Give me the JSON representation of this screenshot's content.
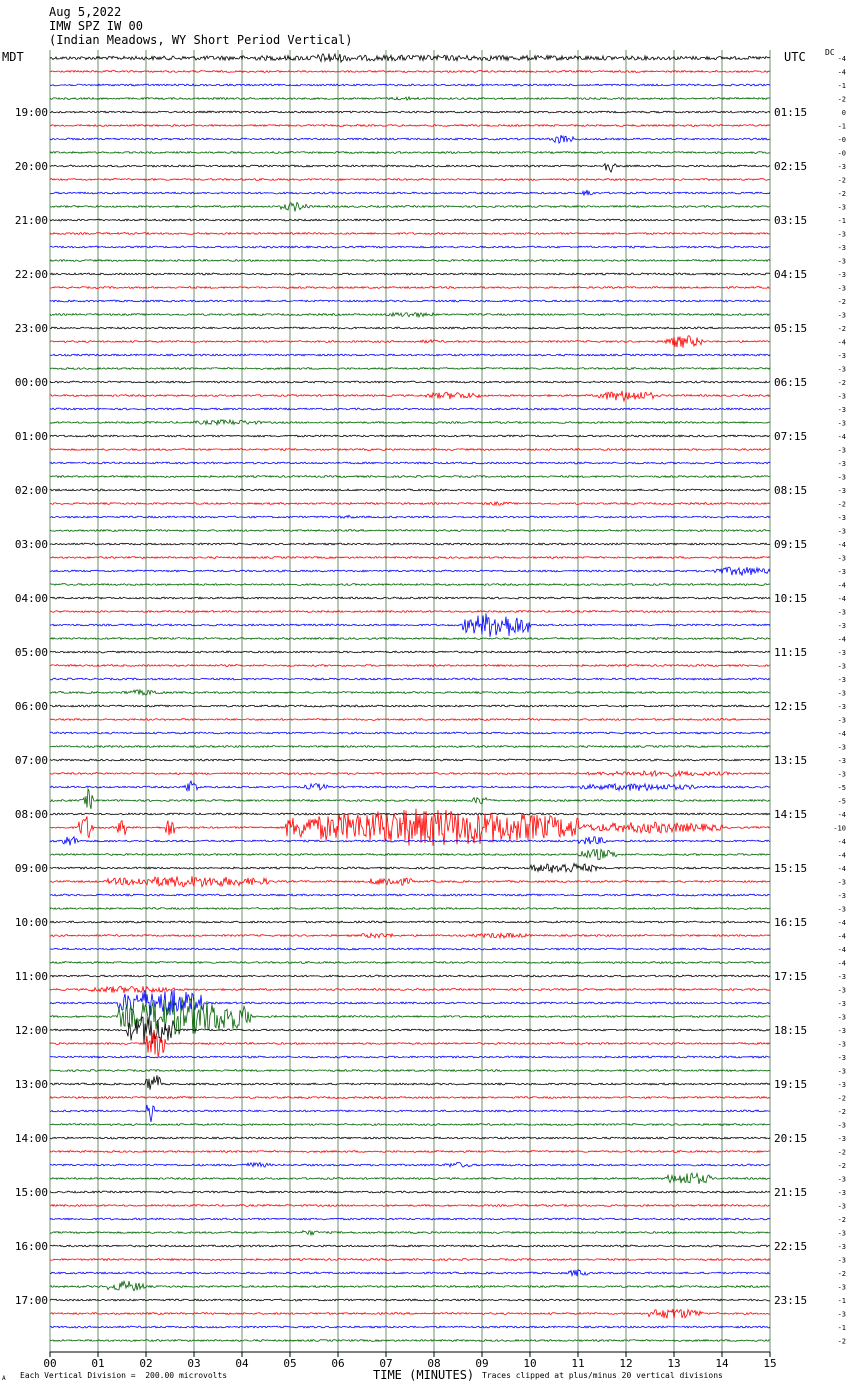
{
  "header": {
    "date": "Aug 5,2022",
    "station": "IMW SPZ IW 00",
    "location": "(Indian Meadows, WY Short Period Vertical)"
  },
  "left_tz": "MDT",
  "right_tz": "UTC",
  "dc_label": "DC",
  "footer": {
    "scale_note": "Each Vertical Division =  200.00 microvolts",
    "clip_note": "Traces clipped at plus/minus 20 vertical divisions",
    "corner_mark": "A"
  },
  "colors": {
    "trace_cycle": [
      "#000000",
      "#ff0000",
      "#0000ff",
      "#006400"
    ],
    "gridline": "#6e8f6e"
  },
  "chart_data": {
    "type": "helicorder",
    "title": "IMW SPZ IW 00",
    "subtitle": "(Indian Meadows, WY Short Period Vertical)",
    "date": "Aug 5,2022",
    "xlabel": "TIME (MINUTES)",
    "x_range": [
      0,
      15
    ],
    "x_ticks": [
      "00",
      "01",
      "02",
      "03",
      "04",
      "05",
      "06",
      "07",
      "08",
      "09",
      "10",
      "11",
      "12",
      "13",
      "14",
      "15"
    ],
    "trace_minutes": 15,
    "trace_count": 96,
    "left_hour_labels": [
      "19:00",
      "20:00",
      "21:00",
      "22:00",
      "23:00",
      "00:00",
      "01:00",
      "02:00",
      "03:00",
      "04:00",
      "05:00",
      "06:00",
      "07:00",
      "08:00",
      "09:00",
      "10:00",
      "11:00",
      "12:00",
      "13:00",
      "14:00",
      "15:00",
      "16:00",
      "17:00"
    ],
    "right_hour_labels": [
      "01:15",
      "02:15",
      "03:15",
      "04:15",
      "05:15",
      "06:15",
      "07:15",
      "08:15",
      "09:15",
      "10:15",
      "11:15",
      "12:15",
      "13:15",
      "14:15",
      "15:15",
      "16:15",
      "17:15",
      "18:15",
      "19:15",
      "20:15",
      "21:15",
      "22:15",
      "23:15"
    ],
    "first_labeled_line": 4,
    "lines_per_hour": 4,
    "dc_offsets": [
      "-4",
      "-4",
      "-1",
      "-2",
      "0",
      "-1",
      "-0",
      "-0",
      "-3",
      "-2",
      "-2",
      "-3",
      "-1",
      "-3",
      "-3",
      "-3",
      "-3",
      "-3",
      "-2",
      "-3",
      "-2",
      "-4",
      "-3",
      "-3",
      "-2",
      "-3",
      "-3",
      "-3",
      "-4",
      "-3",
      "-3",
      "-3",
      "-3",
      "-2",
      "-3",
      "-3",
      "-4",
      "-3",
      "-3",
      "-4",
      "-4",
      "-3",
      "-3",
      "-4",
      "-3",
      "-3",
      "-3",
      "-3",
      "-3",
      "-3",
      "-4",
      "-3",
      "-3",
      "-3",
      "-5",
      "-5",
      "-4",
      "-10",
      "-4",
      "-4",
      "-4",
      "-3",
      "-3",
      "-3",
      "-4",
      "-4",
      "-4",
      "-4",
      "-3",
      "-3",
      "-3",
      "-3",
      "-3",
      "-3",
      "-3",
      "-3",
      "-3",
      "-2",
      "-2",
      "-3",
      "-3",
      "-2",
      "-2",
      "-3",
      "-3",
      "-3",
      "-2",
      "-3",
      "-3",
      "-3",
      "-2",
      "-3",
      "-1",
      "-3",
      "-1",
      "-2"
    ],
    "events": [
      {
        "line": 0,
        "start": 0.0,
        "end": 15.0,
        "amp": 3
      },
      {
        "line": 0,
        "start": 5.5,
        "end": 6.2,
        "amp": 6
      },
      {
        "line": 3,
        "start": 7.0,
        "end": 7.8,
        "amp": 2
      },
      {
        "line": 6,
        "start": 10.4,
        "end": 10.9,
        "amp": 5
      },
      {
        "line": 8,
        "start": 11.5,
        "end": 11.8,
        "amp": 7
      },
      {
        "line": 10,
        "start": 11.1,
        "end": 11.3,
        "amp": 5
      },
      {
        "line": 11,
        "start": 4.8,
        "end": 5.4,
        "amp": 5
      },
      {
        "line": 21,
        "start": 12.8,
        "end": 13.6,
        "amp": 7
      },
      {
        "line": 19,
        "start": 7.0,
        "end": 8.0,
        "amp": 3
      },
      {
        "line": 21,
        "start": 7.6,
        "end": 8.2,
        "amp": 2
      },
      {
        "line": 25,
        "start": 7.8,
        "end": 9.0,
        "amp": 4
      },
      {
        "line": 25,
        "start": 11.4,
        "end": 12.6,
        "amp": 6
      },
      {
        "line": 27,
        "start": 3.0,
        "end": 4.4,
        "amp": 3
      },
      {
        "line": 33,
        "start": 9.0,
        "end": 9.6,
        "amp": 2
      },
      {
        "line": 34,
        "start": 6.0,
        "end": 6.4,
        "amp": 2
      },
      {
        "line": 38,
        "start": 13.8,
        "end": 15.0,
        "amp": 5
      },
      {
        "line": 42,
        "start": 8.6,
        "end": 10.0,
        "amp": 14
      },
      {
        "line": 47,
        "start": 1.5,
        "end": 2.4,
        "amp": 3
      },
      {
        "line": 53,
        "start": 11.2,
        "end": 14.2,
        "amp": 3
      },
      {
        "line": 54,
        "start": 2.8,
        "end": 3.1,
        "amp": 8
      },
      {
        "line": 54,
        "start": 5.3,
        "end": 5.8,
        "amp": 4
      },
      {
        "line": 54,
        "start": 11.0,
        "end": 13.5,
        "amp": 4
      },
      {
        "line": 55,
        "start": 0.7,
        "end": 0.9,
        "amp": 12
      },
      {
        "line": 55,
        "start": 8.8,
        "end": 9.2,
        "amp": 5
      },
      {
        "line": 57,
        "start": 4.9,
        "end": 11.0,
        "amp": 20
      },
      {
        "line": 57,
        "start": 11.0,
        "end": 14.0,
        "amp": 6
      },
      {
        "line": 57,
        "start": 0.6,
        "end": 0.9,
        "amp": 14
      },
      {
        "line": 57,
        "start": 1.4,
        "end": 1.6,
        "amp": 12
      },
      {
        "line": 57,
        "start": 2.4,
        "end": 2.6,
        "amp": 12
      },
      {
        "line": 58,
        "start": 0.2,
        "end": 0.6,
        "amp": 6
      },
      {
        "line": 58,
        "start": 11.0,
        "end": 11.6,
        "amp": 5
      },
      {
        "line": 59,
        "start": 11.0,
        "end": 11.8,
        "amp": 6
      },
      {
        "line": 60,
        "start": 10.0,
        "end": 11.4,
        "amp": 6
      },
      {
        "line": 61,
        "start": 1.2,
        "end": 4.6,
        "amp": 6
      },
      {
        "line": 61,
        "start": 6.6,
        "end": 7.6,
        "amp": 5
      },
      {
        "line": 65,
        "start": 6.4,
        "end": 7.2,
        "amp": 3
      },
      {
        "line": 65,
        "start": 8.8,
        "end": 10.0,
        "amp": 3
      },
      {
        "line": 69,
        "start": 0.8,
        "end": 2.6,
        "amp": 4
      },
      {
        "line": 70,
        "start": 1.4,
        "end": 3.2,
        "amp": 16
      },
      {
        "line": 71,
        "start": 1.4,
        "end": 4.2,
        "amp": 20
      },
      {
        "line": 72,
        "start": 1.6,
        "end": 2.6,
        "amp": 18
      },
      {
        "line": 73,
        "start": 2.0,
        "end": 2.4,
        "amp": 16
      },
      {
        "line": 76,
        "start": 2.0,
        "end": 2.3,
        "amp": 12
      },
      {
        "line": 78,
        "start": 2.0,
        "end": 2.2,
        "amp": 12
      },
      {
        "line": 82,
        "start": 4.0,
        "end": 4.6,
        "amp": 3
      },
      {
        "line": 82,
        "start": 8.2,
        "end": 8.8,
        "amp": 3
      },
      {
        "line": 83,
        "start": 12.8,
        "end": 13.8,
        "amp": 7
      },
      {
        "line": 87,
        "start": 5.2,
        "end": 5.6,
        "amp": 3
      },
      {
        "line": 90,
        "start": 10.8,
        "end": 11.2,
        "amp": 4
      },
      {
        "line": 91,
        "start": 1.2,
        "end": 2.0,
        "amp": 6
      },
      {
        "line": 93,
        "start": 12.4,
        "end": 13.6,
        "amp": 6
      }
    ]
  }
}
